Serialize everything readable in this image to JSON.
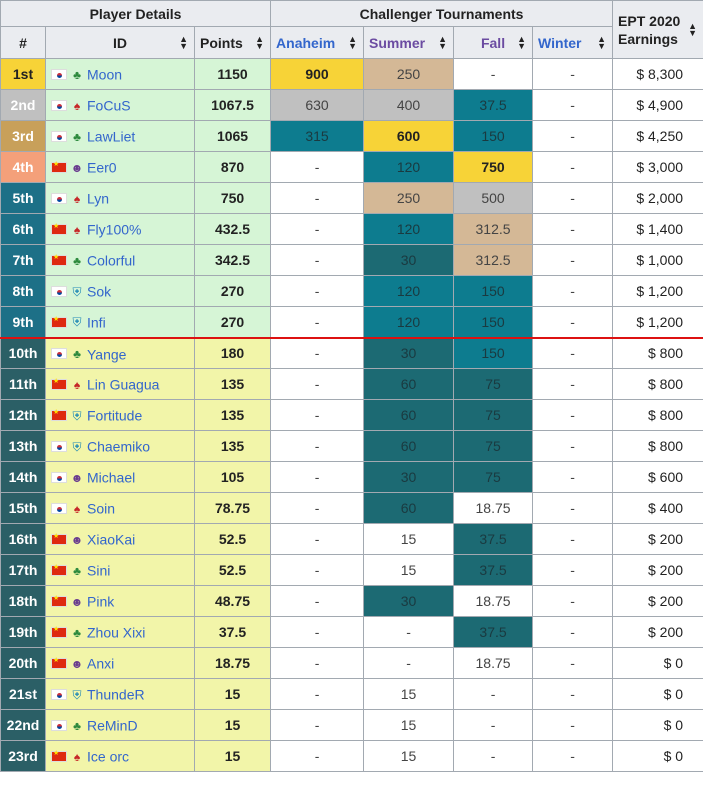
{
  "headers": {
    "player_details": "Player Details",
    "challenger": "Challenger Tournaments",
    "earnings_line1": "EPT 2020",
    "earnings_line2": "Earnings",
    "rank": "#",
    "id": "ID",
    "points": "Points",
    "anaheim": "Anaheim",
    "summer": "Summer",
    "fall": "Fall",
    "winter": "Winter"
  },
  "icons": {
    "sort": "sort-arrows-icon",
    "flag_kr": "south-korea-flag-icon",
    "flag_cn": "china-flag-icon"
  },
  "rows": [
    {
      "rank": "1st",
      "flag": "kr",
      "cls": "green",
      "name": "Moon",
      "points": "1150",
      "anaheim": "900",
      "summer": "250",
      "fall": "-",
      "winter": "-",
      "earnings": "$ 8,300"
    },
    {
      "rank": "2nd",
      "flag": "kr",
      "cls": "red",
      "name": "FoCuS",
      "points": "1067.5",
      "anaheim": "630",
      "summer": "400",
      "fall": "37.5",
      "winter": "-",
      "earnings": "$ 4,900"
    },
    {
      "rank": "3rd",
      "flag": "kr",
      "cls": "green",
      "name": "LawLiet",
      "points": "1065",
      "anaheim": "315",
      "summer": "600",
      "fall": "150",
      "winter": "-",
      "earnings": "$ 4,250"
    },
    {
      "rank": "4th",
      "flag": "cn",
      "cls": "purple",
      "name": "Eer0",
      "points": "870",
      "anaheim": "-",
      "summer": "120",
      "fall": "750",
      "winter": "-",
      "earnings": "$ 3,000"
    },
    {
      "rank": "5th",
      "flag": "kr",
      "cls": "red",
      "name": "Lyn",
      "points": "750",
      "anaheim": "-",
      "summer": "250",
      "fall": "500",
      "winter": "-",
      "earnings": "$ 2,000"
    },
    {
      "rank": "6th",
      "flag": "cn",
      "cls": "red",
      "name": "Fly100%",
      "points": "432.5",
      "anaheim": "-",
      "summer": "120",
      "fall": "312.5",
      "winter": "-",
      "earnings": "$ 1,400"
    },
    {
      "rank": "7th",
      "flag": "cn",
      "cls": "green",
      "name": "Colorful",
      "points": "342.5",
      "anaheim": "-",
      "summer": "30",
      "fall": "312.5",
      "winter": "-",
      "earnings": "$ 1,000"
    },
    {
      "rank": "8th",
      "flag": "kr",
      "cls": "cyan",
      "name": "Sok",
      "points": "270",
      "anaheim": "-",
      "summer": "120",
      "fall": "150",
      "winter": "-",
      "earnings": "$ 1,200"
    },
    {
      "rank": "9th",
      "flag": "cn",
      "cls": "cyan",
      "name": "Infi",
      "points": "270",
      "anaheim": "-",
      "summer": "120",
      "fall": "150",
      "winter": "-",
      "earnings": "$ 1,200"
    },
    {
      "rank": "10th",
      "flag": "kr",
      "cls": "green",
      "name": "Yange",
      "points": "180",
      "anaheim": "-",
      "summer": "30",
      "fall": "150",
      "winter": "-",
      "earnings": "$ 800"
    },
    {
      "rank": "11th",
      "flag": "cn",
      "cls": "red",
      "name": "Lin Guagua",
      "points": "135",
      "anaheim": "-",
      "summer": "60",
      "fall": "75",
      "winter": "-",
      "earnings": "$ 800"
    },
    {
      "rank": "12th",
      "flag": "cn",
      "cls": "cyan",
      "name": "Fortitude",
      "points": "135",
      "anaheim": "-",
      "summer": "60",
      "fall": "75",
      "winter": "-",
      "earnings": "$ 800"
    },
    {
      "rank": "13th",
      "flag": "kr",
      "cls": "cyan",
      "name": "Chaemiko",
      "points": "135",
      "anaheim": "-",
      "summer": "60",
      "fall": "75",
      "winter": "-",
      "earnings": "$ 800"
    },
    {
      "rank": "14th",
      "flag": "kr",
      "cls": "purple",
      "name": "Michael",
      "points": "105",
      "anaheim": "-",
      "summer": "30",
      "fall": "75",
      "winter": "-",
      "earnings": "$ 600"
    },
    {
      "rank": "15th",
      "flag": "kr",
      "cls": "red",
      "name": "Soin",
      "points": "78.75",
      "anaheim": "-",
      "summer": "60",
      "fall": "18.75",
      "winter": "-",
      "earnings": "$ 400"
    },
    {
      "rank": "16th",
      "flag": "cn",
      "cls": "purple",
      "name": "XiaoKai",
      "points": "52.5",
      "anaheim": "-",
      "summer": "15",
      "fall": "37.5",
      "winter": "-",
      "earnings": "$ 200"
    },
    {
      "rank": "17th",
      "flag": "cn",
      "cls": "green",
      "name": "Sini",
      "points": "52.5",
      "anaheim": "-",
      "summer": "15",
      "fall": "37.5",
      "winter": "-",
      "earnings": "$ 200"
    },
    {
      "rank": "18th",
      "flag": "cn",
      "cls": "purple",
      "name": "Pink",
      "points": "48.75",
      "anaheim": "-",
      "summer": "30",
      "fall": "18.75",
      "winter": "-",
      "earnings": "$ 200"
    },
    {
      "rank": "19th",
      "flag": "cn",
      "cls": "green",
      "name": "Zhou Xixi",
      "points": "37.5",
      "anaheim": "-",
      "summer": "-",
      "fall": "37.5",
      "winter": "-",
      "earnings": "$ 200"
    },
    {
      "rank": "20th",
      "flag": "cn",
      "cls": "purple",
      "name": "Anxi",
      "points": "18.75",
      "anaheim": "-",
      "summer": "-",
      "fall": "18.75",
      "winter": "-",
      "earnings": "$ 0"
    },
    {
      "rank": "21st",
      "flag": "kr",
      "cls": "cyan",
      "name": "ThundeR",
      "points": "15",
      "anaheim": "-",
      "summer": "15",
      "fall": "-",
      "winter": "-",
      "earnings": "$ 0"
    },
    {
      "rank": "22nd",
      "flag": "kr",
      "cls": "green",
      "name": "ReMinD",
      "points": "15",
      "anaheim": "-",
      "summer": "15",
      "fall": "-",
      "winter": "-",
      "earnings": "$ 0"
    },
    {
      "rank": "23rd",
      "flag": "cn",
      "cls": "red",
      "name": "Ice orc",
      "points": "15",
      "anaheim": "-",
      "summer": "15",
      "fall": "-",
      "winter": "-",
      "earnings": "$ 0"
    }
  ]
}
